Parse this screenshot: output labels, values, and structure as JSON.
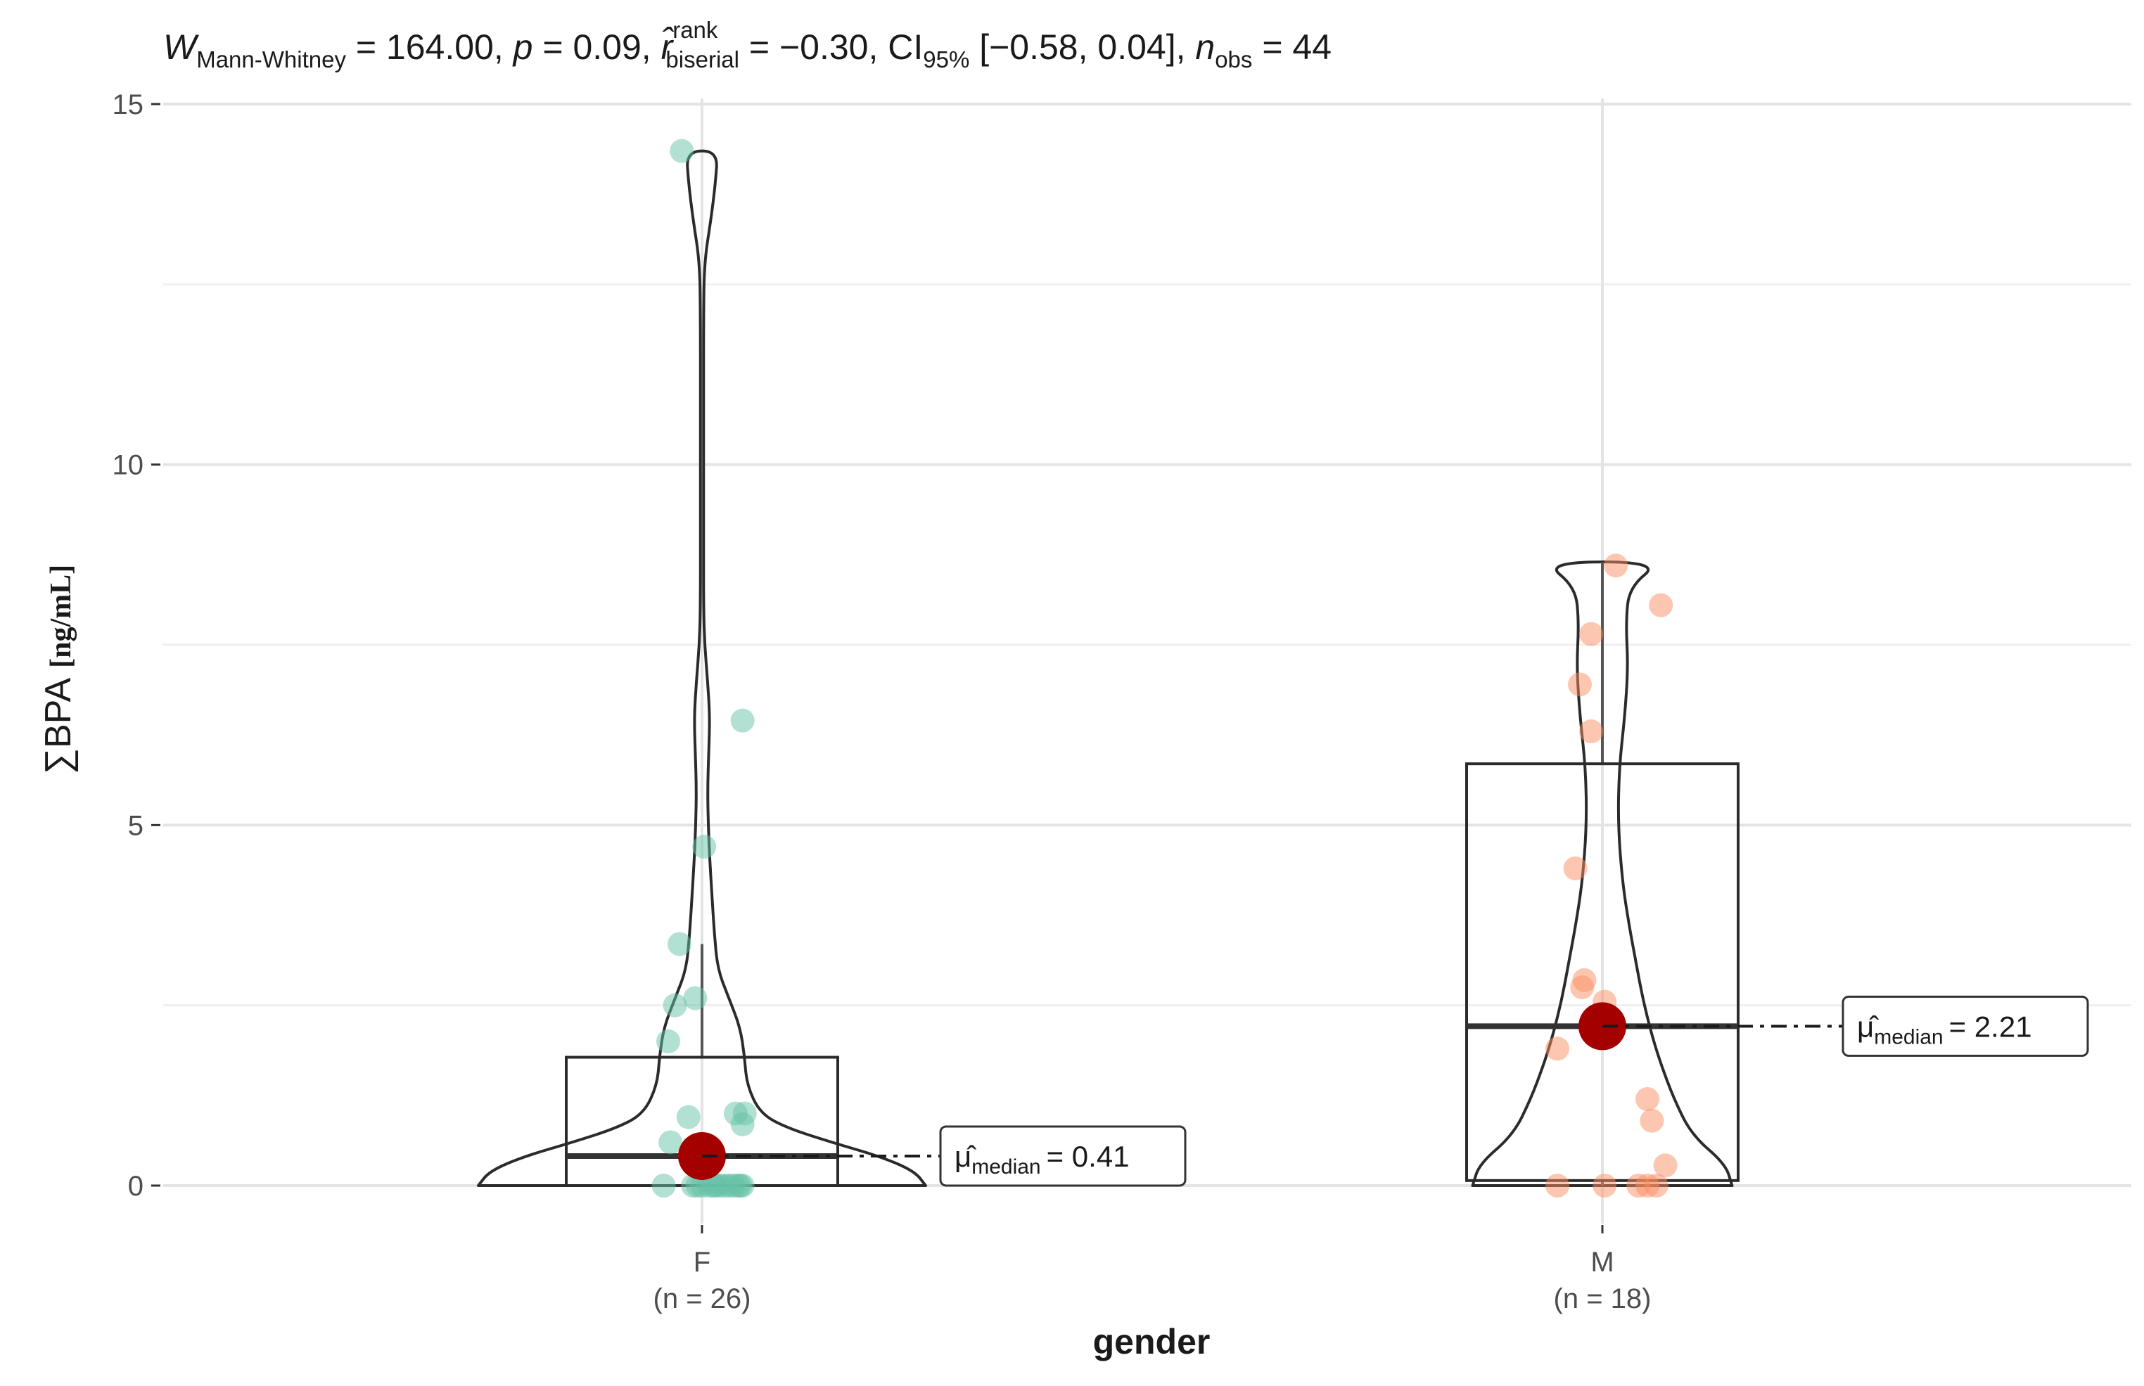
{
  "chart_data": {
    "type": "violin-box-scatter",
    "subtitle": {
      "w_symbol": "W",
      "w_sub": "Mann-Whitney",
      "w_value": " = 164.00, ",
      "p_symbol": "p",
      "p_value": " = 0.09, ",
      "r_symbol": "r̂",
      "r_sup": "rank",
      "r_sub": "biserial",
      "r_value": " = −0.30, CI",
      "ci_sub": "95%",
      "ci_value": " [−0.58, 0.04], ",
      "n_symbol": "n",
      "n_sub": "obs",
      "n_value": " = 44"
    },
    "xlabel": "gender",
    "ylabel_main": "∑BPA",
    "ylabel_unit": "[ng/mL]",
    "ylim": [
      -1.4,
      15.6
    ],
    "y_ticks": [
      0,
      5,
      10,
      15
    ],
    "y_tick_labels": [
      "0",
      "5",
      "10",
      "15"
    ],
    "grid": true,
    "groups": [
      {
        "name": "F",
        "n_label": "(n = 26)",
        "color": "#1b9e77",
        "point_color": "#66c2a5",
        "median": 0.41,
        "median_label": "= 0.41",
        "box": {
          "q1": 0.0,
          "median": 0.41,
          "q3": 1.78,
          "whisker_low": 0.0,
          "whisker_high": 3.35
        },
        "violin": [
          [
            0.0,
            1.0
          ],
          [
            0.2,
            0.95
          ],
          [
            0.4,
            0.8
          ],
          [
            0.6,
            0.58
          ],
          [
            0.8,
            0.38
          ],
          [
            1.0,
            0.26
          ],
          [
            1.4,
            0.2
          ],
          [
            1.8,
            0.19
          ],
          [
            2.2,
            0.17
          ],
          [
            2.6,
            0.12
          ],
          [
            3.0,
            0.07
          ],
          [
            3.5,
            0.055
          ],
          [
            4.0,
            0.045
          ],
          [
            4.5,
            0.035
          ],
          [
            5.0,
            0.028
          ],
          [
            5.5,
            0.025
          ],
          [
            6.0,
            0.03
          ],
          [
            6.5,
            0.035
          ],
          [
            7.0,
            0.025
          ],
          [
            7.5,
            0.012
          ],
          [
            8.0,
            0.007
          ],
          [
            9.0,
            0.007
          ],
          [
            10.0,
            0.007
          ],
          [
            11.0,
            0.007
          ],
          [
            12.0,
            0.007
          ],
          [
            12.8,
            0.01
          ],
          [
            13.4,
            0.04
          ],
          [
            13.9,
            0.06
          ],
          [
            14.35,
            0.07
          ]
        ],
        "points": [
          [
            -0.09,
            14.35
          ],
          [
            0.18,
            6.45
          ],
          [
            0.01,
            4.7
          ],
          [
            -0.1,
            3.35
          ],
          [
            -0.12,
            2.5
          ],
          [
            -0.03,
            2.6
          ],
          [
            -0.15,
            2.0
          ],
          [
            -0.06,
            0.95
          ],
          [
            0.15,
            1.0
          ],
          [
            0.18,
            0.85
          ],
          [
            -0.14,
            0.6
          ],
          [
            0.19,
            1.0
          ],
          [
            -0.17,
            0.0
          ],
          [
            -0.04,
            0.0
          ],
          [
            0.0,
            0.0
          ],
          [
            0.06,
            0.0
          ],
          [
            0.1,
            0.0
          ],
          [
            0.16,
            0.0
          ],
          [
            0.18,
            0.0
          ],
          [
            0.03,
            0.0
          ],
          [
            0.08,
            0.0
          ],
          [
            0.14,
            0.0
          ],
          [
            -0.02,
            0.0
          ],
          [
            0.12,
            0.0
          ],
          [
            0.17,
            0.0
          ],
          [
            0.05,
            0.0
          ]
        ]
      },
      {
        "name": "M",
        "n_label": "(n = 18)",
        "color": "#d95f02",
        "point_color": "#fc8d62",
        "median": 2.21,
        "median_label": "= 2.21",
        "box": {
          "q1": 0.07,
          "median": 2.21,
          "q3": 5.85,
          "whisker_low": 0.0,
          "whisker_high": 8.65
        },
        "violin": [
          [
            0.0,
            0.58
          ],
          [
            0.3,
            0.55
          ],
          [
            0.7,
            0.4
          ],
          [
            1.2,
            0.32
          ],
          [
            1.7,
            0.26
          ],
          [
            2.1,
            0.22
          ],
          [
            2.6,
            0.18
          ],
          [
            3.1,
            0.15
          ],
          [
            3.6,
            0.12
          ],
          [
            4.2,
            0.09
          ],
          [
            5.0,
            0.07
          ],
          [
            5.8,
            0.075
          ],
          [
            6.5,
            0.1
          ],
          [
            7.2,
            0.115
          ],
          [
            7.8,
            0.105
          ],
          [
            8.3,
            0.12
          ],
          [
            8.65,
            0.26
          ]
        ],
        "points": [
          [
            0.06,
            8.6
          ],
          [
            -0.05,
            7.65
          ],
          [
            0.26,
            8.05
          ],
          [
            -0.1,
            6.95
          ],
          [
            -0.05,
            6.3
          ],
          [
            -0.12,
            4.4
          ],
          [
            -0.08,
            2.85
          ],
          [
            -0.09,
            2.75
          ],
          [
            0.01,
            2.55
          ],
          [
            -0.2,
            1.9
          ],
          [
            0.2,
            1.2
          ],
          [
            0.22,
            0.9
          ],
          [
            -0.2,
            0.0
          ],
          [
            0.01,
            0.0
          ],
          [
            0.16,
            0.0
          ],
          [
            0.24,
            0.0
          ],
          [
            0.2,
            0.0
          ],
          [
            0.28,
            0.28
          ]
        ]
      }
    ]
  }
}
